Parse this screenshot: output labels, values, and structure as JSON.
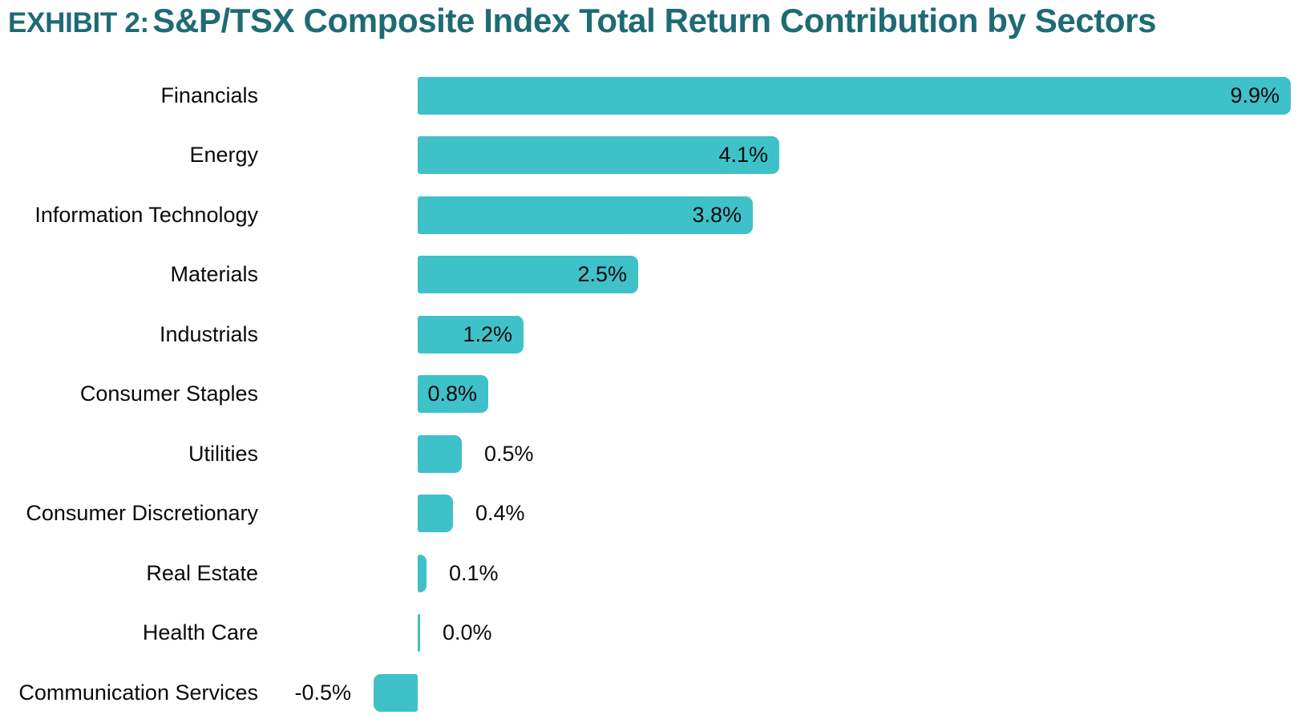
{
  "header": {
    "exhibit_label": "EXHIBIT 2:",
    "title": "S&P/TSX Composite Index Total Return Contribution by Sectors"
  },
  "colors": {
    "title": "#1E6B74",
    "bar": "#3FC1C9",
    "label_text": "#0a0a0a",
    "background": "#ffffff"
  },
  "chart_data": {
    "type": "bar",
    "orientation": "horizontal",
    "title": "EXHIBIT 2: S&P/TSX Composite Index Total Return Contribution by Sectors",
    "xlabel": "",
    "ylabel": "",
    "xlim": [
      -0.6,
      10.0
    ],
    "grid": false,
    "legend": false,
    "bar_color": "#3FC1C9",
    "categories": [
      "Financials",
      "Energy",
      "Information Technology",
      "Materials",
      "Industrials",
      "Consumer Staples",
      "Utilities",
      "Consumer Discretionary",
      "Real Estate",
      "Health Care",
      "Communication Services"
    ],
    "values": [
      9.9,
      4.1,
      3.8,
      2.5,
      1.2,
      0.8,
      0.5,
      0.4,
      0.1,
      0.0,
      -0.5
    ],
    "value_labels": [
      "9.9%",
      "4.1%",
      "3.8%",
      "2.5%",
      "1.2%",
      "0.8%",
      "0.5%",
      "0.4%",
      "0.1%",
      "0.0%",
      "-0.5%"
    ],
    "value_label_positions": [
      "inside",
      "inside",
      "inside",
      "inside",
      "inside",
      "inside",
      "outside-right",
      "outside-right",
      "outside-right",
      "outside-right",
      "outside-left"
    ]
  }
}
